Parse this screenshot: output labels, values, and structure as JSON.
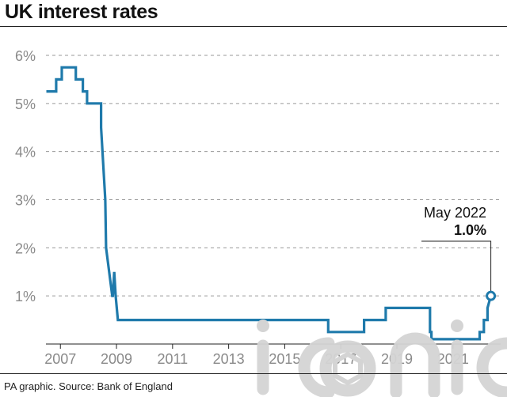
{
  "header": {
    "title": "UK interest rates"
  },
  "footer": {
    "source": "PA graphic. Source: Bank of England"
  },
  "watermark": {
    "text": "iconic"
  },
  "colors": {
    "line": "#1f7aab",
    "grid": "#9a9a9a",
    "axis": "#222222",
    "tick": "#8a8a8a",
    "watermark": "#d4d4d4"
  },
  "chart_data": {
    "type": "line",
    "title": "UK interest rates",
    "xlabel": "",
    "ylabel": "",
    "xlim": [
      2006.4,
      2022.7
    ],
    "ylim": [
      0,
      6
    ],
    "grid": true,
    "y_ticks": [
      1,
      2,
      3,
      4,
      5,
      6
    ],
    "y_tick_labels": [
      "1%",
      "2%",
      "3%",
      "4%",
      "5%",
      "6%"
    ],
    "x_ticks": [
      2007,
      2009,
      2011,
      2013,
      2015,
      2017,
      2019,
      2021
    ],
    "x_tick_labels": [
      "2007",
      "2009",
      "2011",
      "2013",
      "2015",
      "2017",
      "2019",
      "2021"
    ],
    "series": [
      {
        "values_note": "",
        "x": [
          2006.5,
          2006.85,
          2006.85,
          2007.05,
          2007.05,
          2007.55,
          2007.55,
          2007.8,
          2007.8,
          2007.95,
          2007.95,
          2008.45,
          2008.45,
          2008.6,
          2008.63,
          2008.85,
          2008.87,
          2008.92,
          2008.92,
          2008.97,
          2008.97,
          2009.05,
          2009.05,
          2009.17,
          2009.17,
          2016.55,
          2016.55,
          2017.83,
          2017.83,
          2018.6,
          2018.6,
          2020.18,
          2020.18,
          2020.23,
          2020.23,
          2021.95,
          2021.95,
          2022.1,
          2022.1,
          2022.23,
          2022.23,
          2022.35
        ],
        "y": [
          5.25,
          5.25,
          5.5,
          5.5,
          5.75,
          5.75,
          5.5,
          5.5,
          5.25,
          5.25,
          5.0,
          5.0,
          4.5,
          3.0,
          2.0,
          1.0,
          1.0,
          1.5,
          1.5,
          1.0,
          1.0,
          0.5,
          0.5,
          0.5,
          0.5,
          0.5,
          0.25,
          0.25,
          0.5,
          0.5,
          0.75,
          0.75,
          0.25,
          0.25,
          0.1,
          0.1,
          0.25,
          0.25,
          0.5,
          0.5,
          0.75,
          1.0
        ]
      }
    ],
    "annotation": {
      "label": "May 2022",
      "value_label": "1.0%",
      "x": 2022.35,
      "y": 1.0
    }
  }
}
